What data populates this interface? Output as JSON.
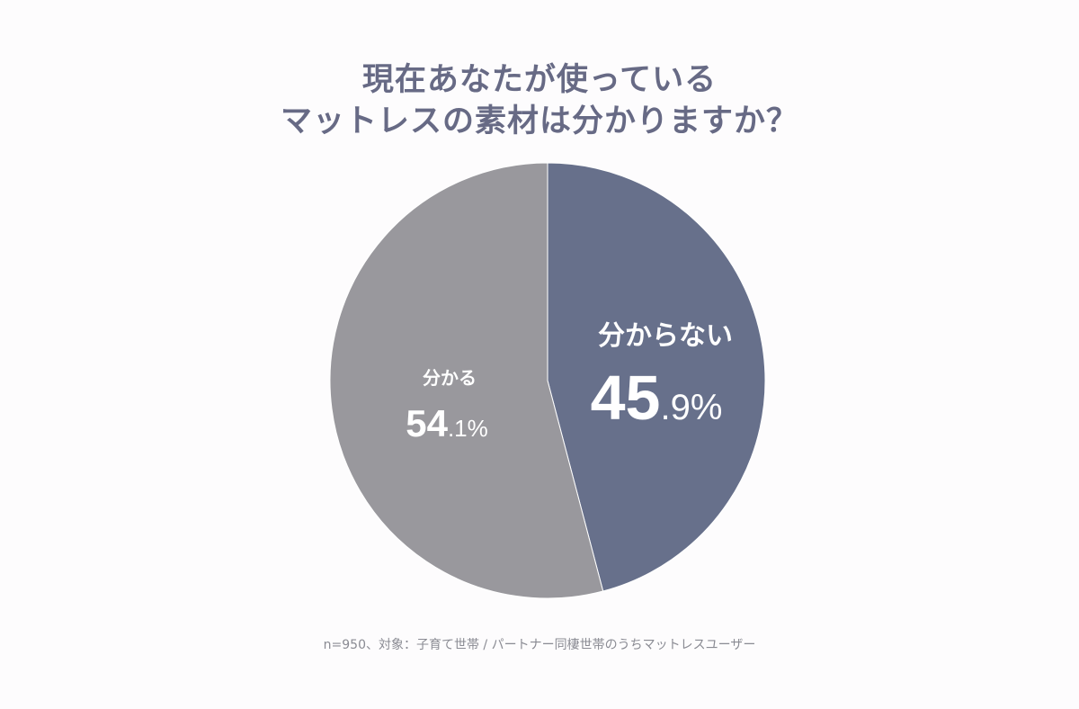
{
  "title_lines": [
    "現在あなたが使っている",
    "マットレスの素材は分かりますか？"
  ],
  "footnote": "n=950、対象：子育て世帯 / パートナー同棲世帯のうちマットレスユーザー",
  "chart_data": {
    "type": "pie",
    "title": "現在あなたが使っているマットレスの素材は分かりますか？",
    "start": "12 o'clock",
    "direction": "clockwise",
    "slices": [
      {
        "label": "分からない",
        "value": 45.9,
        "value_int": "45",
        "value_dec": ".9%",
        "color": "#67708b"
      },
      {
        "label": "分かる",
        "value": 54.1,
        "value_int": "54",
        "value_dec": ".1%",
        "color": "#99989d"
      }
    ]
  }
}
